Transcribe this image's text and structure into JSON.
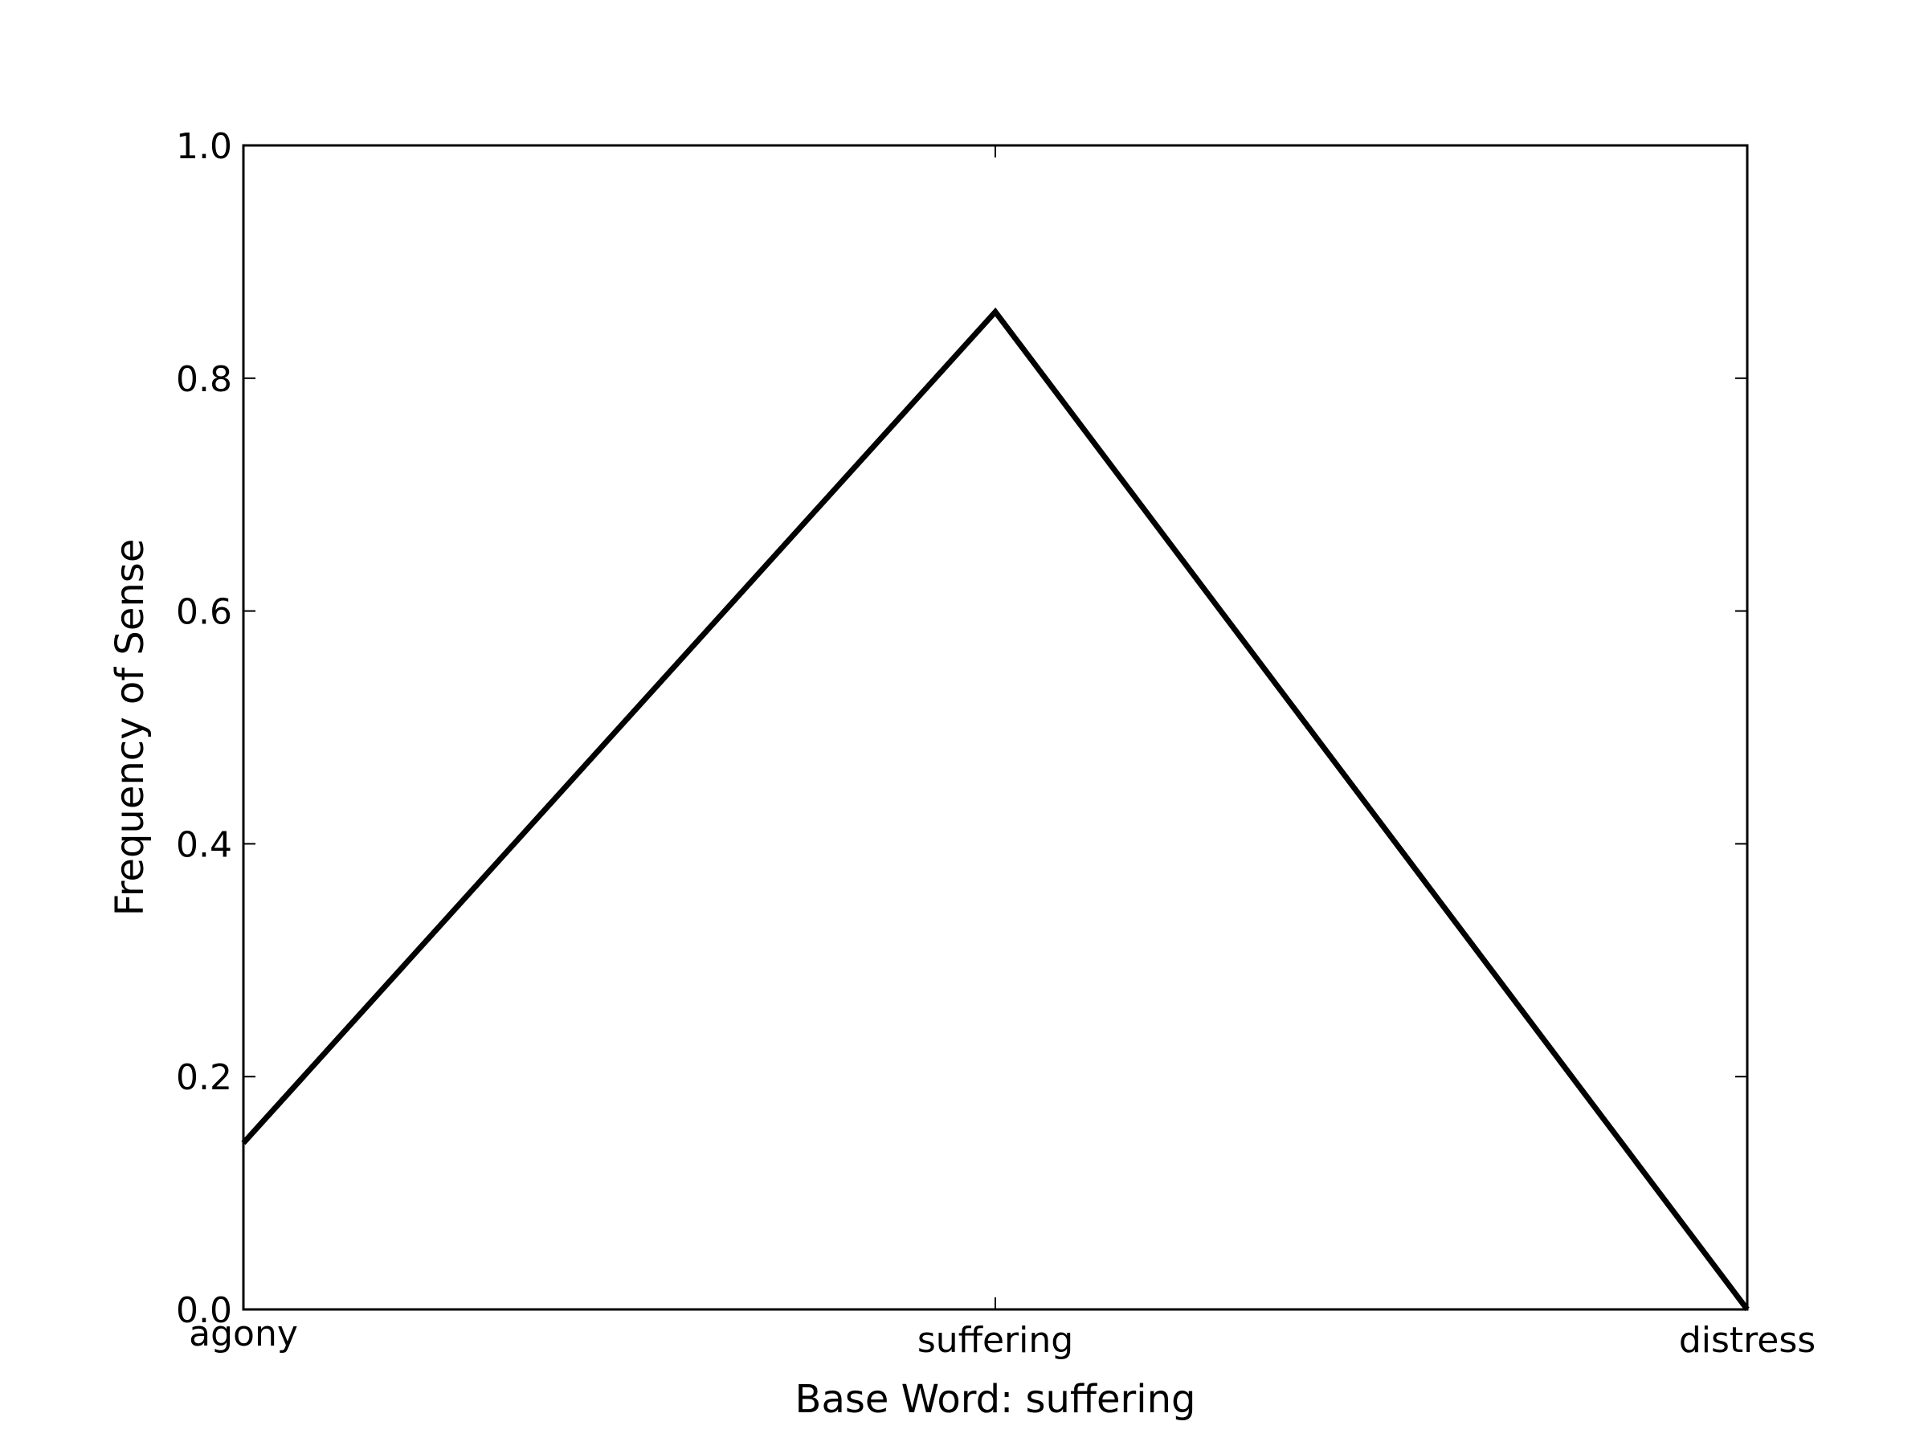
{
  "chart_data": {
    "type": "line",
    "categories": [
      "agony",
      "suffering",
      "distress"
    ],
    "series": [
      {
        "values": [
          0.143,
          0.857,
          0.0
        ]
      }
    ],
    "xlabel": "Base Word: suffering",
    "ylabel": "Frequency of Sense",
    "ylim": [
      0.0,
      1.0
    ],
    "yticks": [
      "0.0",
      "0.2",
      "0.4",
      "0.6",
      "0.8",
      "1.0"
    ],
    "grid": false,
    "line_color": "#000000"
  }
}
